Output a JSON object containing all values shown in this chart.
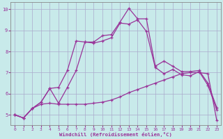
{
  "bg_color": "#c8eaea",
  "line_color": "#993399",
  "grid_color": "#aaaacc",
  "xlabel": "Windchill (Refroidissement éolien,°C)",
  "xlabel_color": "#993399",
  "ylim": [
    4.5,
    10.35
  ],
  "xlim": [
    -0.5,
    23.5
  ],
  "curve1_x": [
    0,
    1,
    2,
    3,
    4,
    5,
    6,
    7,
    8,
    9,
    10,
    11,
    12,
    13,
    14,
    15,
    16,
    17,
    18,
    19,
    20,
    21,
    22,
    23
  ],
  "curve1_y": [
    5.0,
    4.85,
    5.3,
    5.6,
    6.25,
    6.3,
    7.1,
    8.5,
    8.45,
    8.45,
    8.75,
    8.8,
    9.4,
    10.05,
    9.55,
    9.55,
    7.3,
    7.55,
    7.3,
    7.05,
    7.05,
    7.1,
    6.5,
    5.35
  ],
  "curve2_x": [
    0,
    1,
    2,
    3,
    4,
    5,
    6,
    7,
    8,
    9,
    10,
    11,
    12,
    13,
    14,
    15,
    16,
    17,
    18,
    19,
    20,
    21,
    22,
    23
  ],
  "curve2_y": [
    5.0,
    4.85,
    5.3,
    5.6,
    6.25,
    5.55,
    6.3,
    7.1,
    8.45,
    8.4,
    8.5,
    8.65,
    9.35,
    9.3,
    9.5,
    8.95,
    7.25,
    6.95,
    7.15,
    6.9,
    6.85,
    7.05,
    6.4,
    5.25
  ],
  "curve3_x": [
    0,
    1,
    2,
    3,
    4,
    5,
    6,
    7,
    8,
    9,
    10,
    11,
    12,
    13,
    14,
    15,
    16,
    17,
    18,
    19,
    20,
    21,
    22,
    23
  ],
  "curve3_y": [
    5.0,
    4.85,
    5.3,
    5.5,
    5.55,
    5.5,
    5.5,
    5.5,
    5.5,
    5.55,
    5.6,
    5.7,
    5.85,
    6.05,
    6.2,
    6.35,
    6.5,
    6.65,
    6.8,
    6.95,
    7.0,
    7.0,
    6.95,
    4.75
  ],
  "yticks": [
    5,
    6,
    7,
    8,
    9,
    10
  ],
  "xticks": [
    0,
    1,
    2,
    3,
    4,
    5,
    6,
    7,
    8,
    9,
    10,
    11,
    12,
    13,
    14,
    15,
    16,
    17,
    18,
    19,
    20,
    21,
    22,
    23
  ]
}
